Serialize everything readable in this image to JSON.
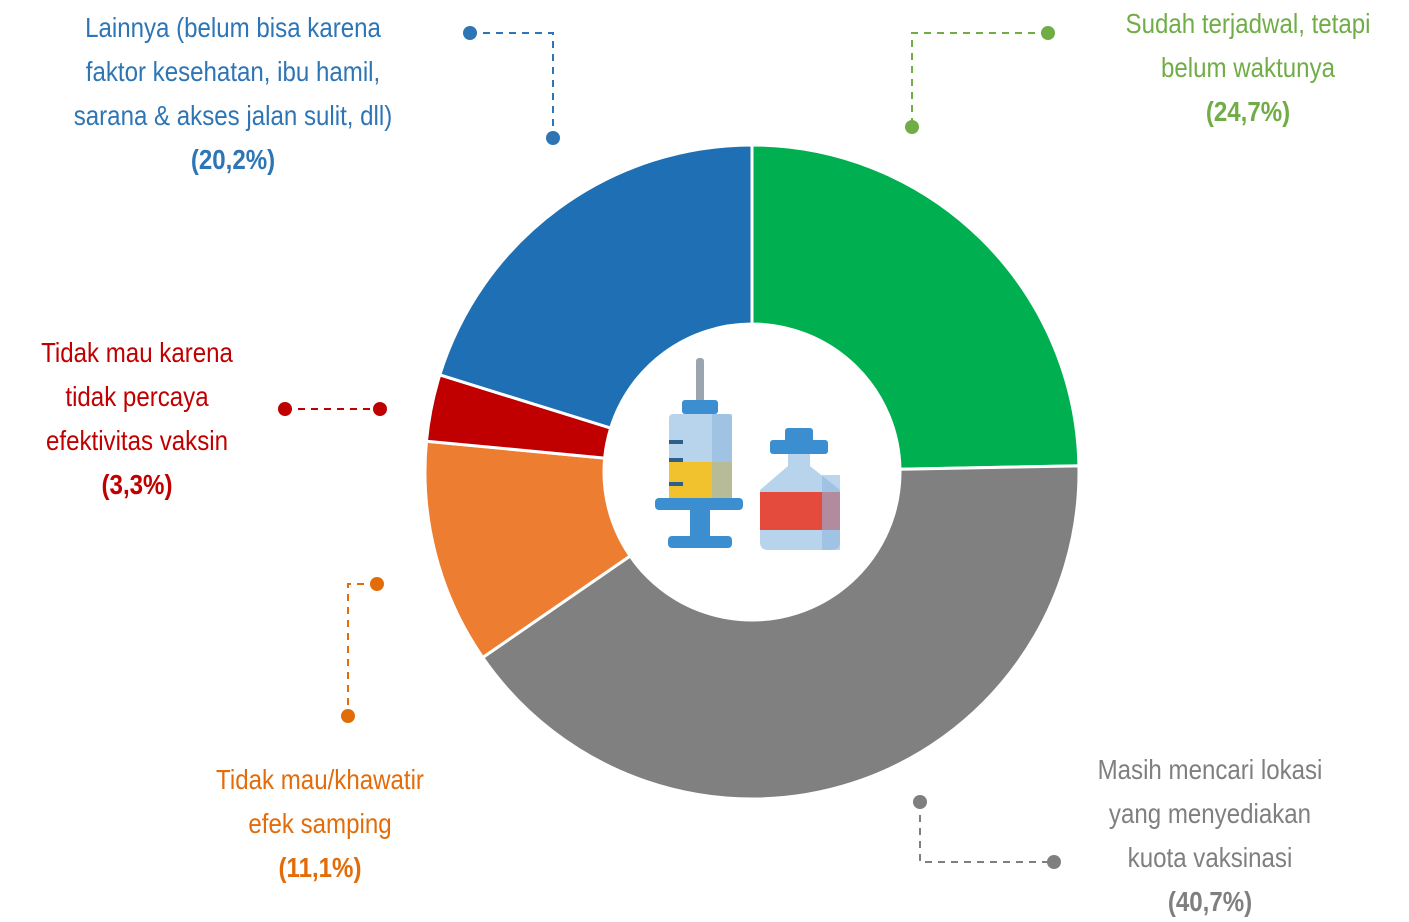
{
  "chart_data": {
    "type": "donut",
    "categories": [
      [
        "Sudah terjadwal, tetapi",
        "belum waktunya"
      ],
      [
        "Masih mencari lokasi",
        "yang menyediakan",
        "kuota vaksinasi"
      ],
      [
        "Tidak mau/khawatir",
        "efek samping"
      ],
      [
        "Tidak mau karena",
        "tidak percaya",
        "efektivitas vaksin"
      ],
      [
        "Lainnya (belum bisa karena",
        "faktor kesehatan, ibu hamil,",
        "sarana & akses jalan sulit, dll)"
      ]
    ],
    "values": [
      24.7,
      40.7,
      11.1,
      3.3,
      20.2
    ],
    "value_labels": [
      "(24,7%)",
      "(40,7%)",
      "(11,1%)",
      "(3,3%)",
      "(20,2%)"
    ],
    "colors": [
      "#00b050",
      "#808080",
      "#ed7d31",
      "#c00000",
      "#1f6fb5"
    ],
    "label_colors": [
      "#70ad47",
      "#7f7f7f",
      "#e36c0a",
      "#c00000",
      "#2e75b6"
    ]
  }
}
